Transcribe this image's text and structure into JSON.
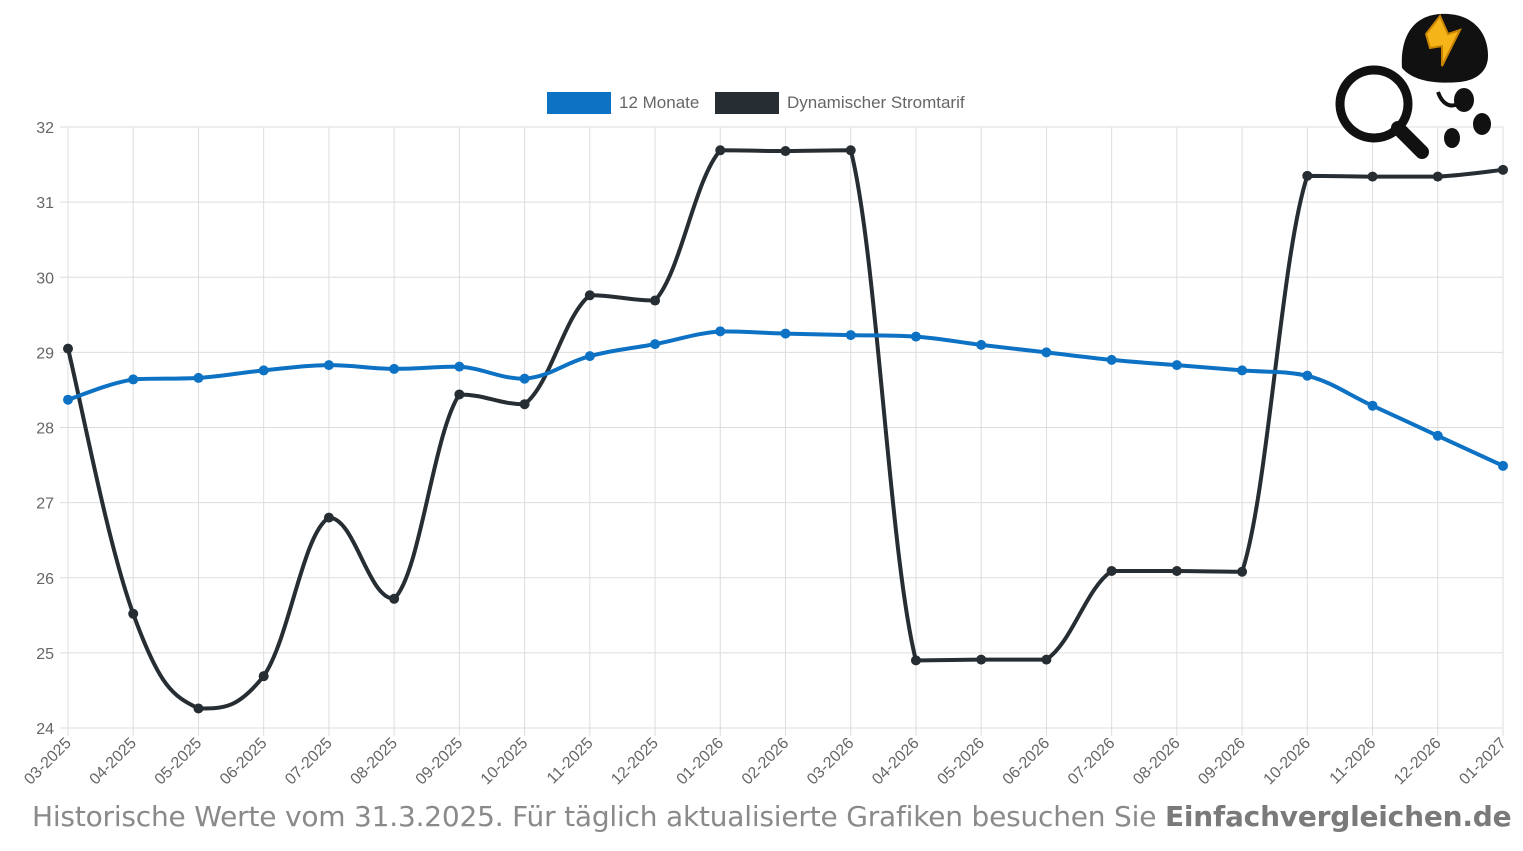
{
  "legend": {
    "series1_label": "12 Monate",
    "series2_label": "Dynamischer Stromtarif"
  },
  "caption": {
    "text": "Historische Werte vom 31.3.2025. Für täglich aktualisierte Grafiken besuchen Sie ",
    "brand": "Einfachvergleichen.de"
  },
  "colors": {
    "series1": "#0d72c4",
    "series2": "#262d33",
    "grid": "#dddddd",
    "tick": "#666666"
  },
  "chart_data": {
    "type": "line",
    "categories": [
      "03-2025",
      "04-2025",
      "05-2025",
      "06-2025",
      "07-2025",
      "08-2025",
      "09-2025",
      "10-2025",
      "11-2025",
      "12-2025",
      "01-2026",
      "02-2026",
      "03-2026",
      "04-2026",
      "05-2026",
      "06-2026",
      "07-2026",
      "08-2026",
      "09-2026",
      "10-2026",
      "11-2026",
      "12-2026",
      "01-2027"
    ],
    "series": [
      {
        "name": "12 Monate",
        "values": [
          28.37,
          28.64,
          28.66,
          28.76,
          28.83,
          28.78,
          28.81,
          28.65,
          28.95,
          29.11,
          29.28,
          29.25,
          29.23,
          29.21,
          29.1,
          29.0,
          28.9,
          28.83,
          28.76,
          28.69,
          28.29,
          27.89,
          27.49
        ]
      },
      {
        "name": "Dynamischer Stromtarif",
        "values": [
          29.05,
          25.52,
          24.26,
          24.69,
          26.8,
          25.72,
          28.44,
          28.31,
          29.76,
          29.69,
          31.69,
          31.68,
          31.69,
          24.9,
          24.91,
          24.91,
          26.09,
          26.09,
          26.08,
          31.35,
          31.34,
          31.34,
          31.43
        ]
      }
    ],
    "ylim": [
      24,
      32
    ],
    "yticks": [
      "24",
      "25",
      "26",
      "27",
      "28",
      "29",
      "30",
      "31",
      "32"
    ],
    "grid": true,
    "legend_position": "top"
  },
  "icons": {
    "mascot": "detective-lightning-icon"
  }
}
